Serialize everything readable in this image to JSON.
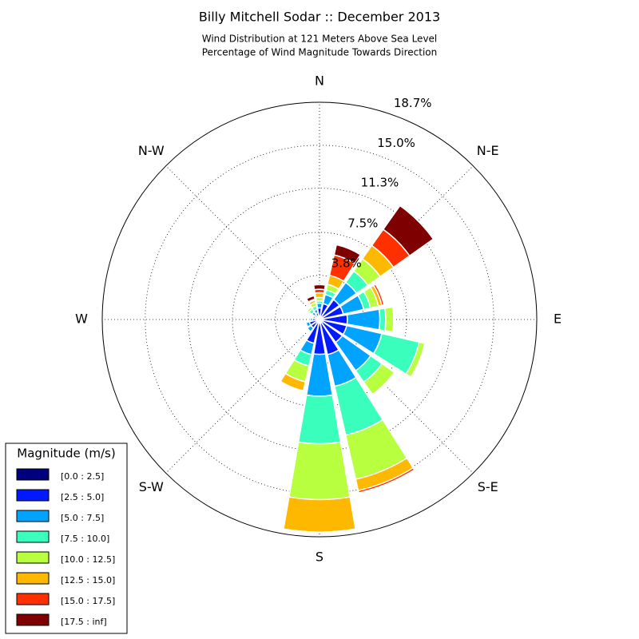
{
  "chart_data": {
    "type": "windrose",
    "title": "Billy Mitchell Sodar :: December 2013",
    "subtitle": [
      "Wind Distribution at 121 Meters Above Sea Level",
      "Percentage of Wind Magnitude Towards Direction"
    ],
    "categories": [
      "N",
      null,
      "N-E",
      null,
      "E",
      null,
      "S-E",
      null,
      "S",
      null,
      "S-W",
      null,
      "W",
      null,
      "N-W",
      null
    ],
    "ylim": [
      0,
      18.7
    ],
    "yticks": [
      {
        "value": 3.8,
        "label": "3.8%"
      },
      {
        "value": 7.5,
        "label": "7.5%"
      },
      {
        "value": 11.3,
        "label": "11.3%"
      },
      {
        "value": 15.0,
        "label": "15.0%"
      },
      {
        "value": 18.7,
        "label": "18.7%"
      }
    ],
    "grid": true,
    "legend_title": "Magnitude (m/s)",
    "legend_position": "lower left",
    "series": [
      {
        "name": "[0.0 : 2.5]",
        "color": "#00007f",
        "values": [
          0.2,
          0.2,
          0.2,
          0.2,
          0.2,
          0.2,
          0.2,
          0.2,
          0.3,
          0.2,
          0.1,
          0.1,
          0.1,
          0.1,
          0.1,
          0.1
        ]
      },
      {
        "name": "[2.5 : 5.0]",
        "color": "#0019ff",
        "values": [
          0.8,
          1.2,
          1.9,
          1.9,
          2.2,
          2.2,
          2.2,
          2.9,
          2.7,
          1.9,
          0.8,
          0.8,
          0.5,
          0.3,
          0.4,
          0.5
        ]
      },
      {
        "name": "[5.0 : 7.5]",
        "color": "#00a4ff",
        "values": [
          0.4,
          0.8,
          1.8,
          1.8,
          2.8,
          3.1,
          3.0,
          2.8,
          3.6,
          1.0,
          0.4,
          0.3,
          0.2,
          0.2,
          0.3,
          0.3
        ]
      },
      {
        "name": "[7.5 : 10.0]",
        "color": "#3affbc",
        "values": [
          0.2,
          0.4,
          1.2,
          0.6,
          0.5,
          3.3,
          1.2,
          4.3,
          4.1,
          1.0,
          0.1,
          0.1,
          0,
          0,
          0.3,
          0.3
        ]
      },
      {
        "name": "[10.0 : 12.5]",
        "color": "#b8ff3f",
        "values": [
          0.3,
          0.5,
          1.3,
          0.7,
          0.7,
          0.5,
          1.3,
          3.9,
          4.8,
          1.4,
          0,
          0,
          0,
          0,
          0.2,
          0.3
        ]
      },
      {
        "name": "[12.5 : 15.0]",
        "color": "#ffb800",
        "values": [
          0.4,
          0.8,
          1.4,
          0.3,
          0,
          0,
          0.1,
          1.0,
          2.8,
          0.8,
          0,
          0,
          0,
          0,
          0.1,
          0.2
        ]
      },
      {
        "name": "[15.0 : 17.5]",
        "color": "#ff3000",
        "values": [
          0.3,
          1.8,
          1.7,
          0.2,
          0,
          0,
          0,
          0.2,
          0,
          0,
          0,
          0,
          0,
          0,
          0,
          0.1
        ]
      },
      {
        "name": "[17.5 : inf]",
        "color": "#7f0000",
        "values": [
          0.4,
          0.9,
          2.5,
          0,
          0,
          0,
          0,
          0,
          0,
          0,
          0,
          0,
          0,
          0,
          0,
          0.3
        ]
      }
    ]
  }
}
